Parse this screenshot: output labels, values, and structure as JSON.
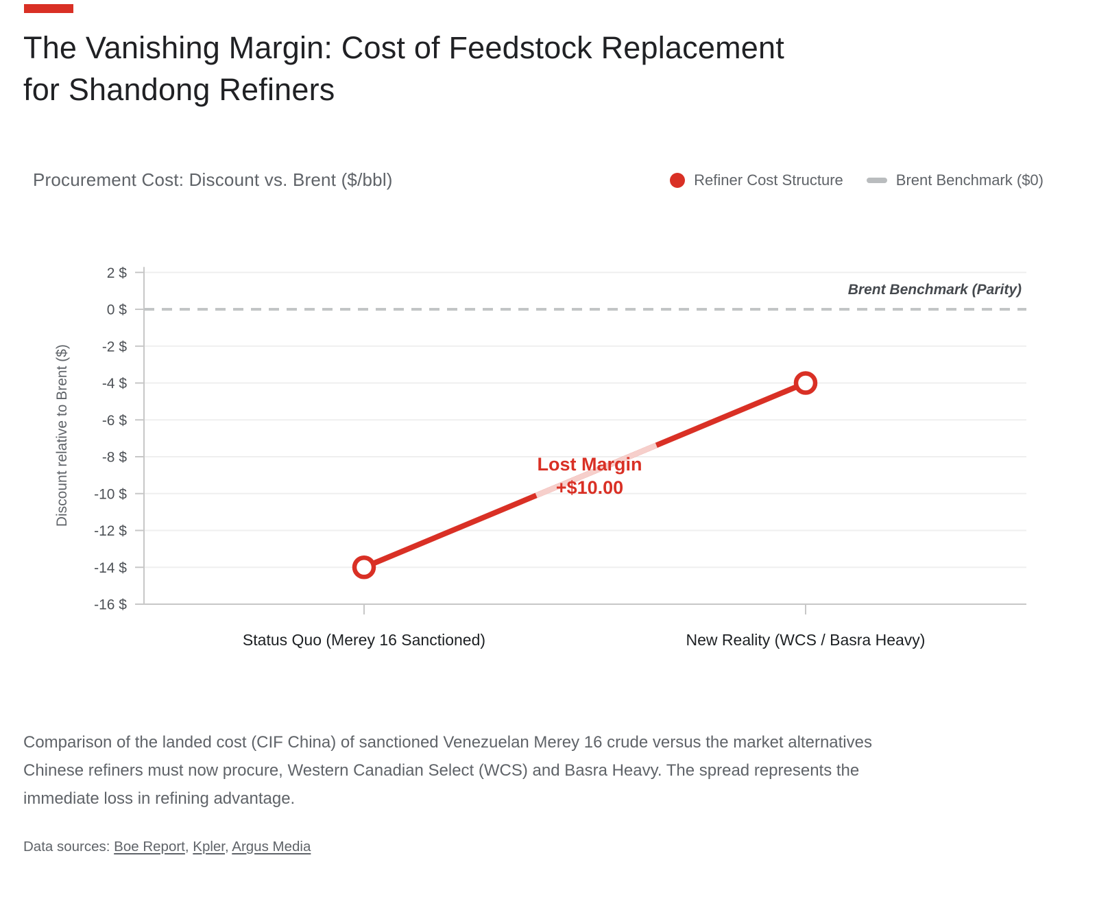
{
  "page": {
    "title_lines": [
      "The Vanishing Margin: Cost of Feedstock Replacement",
      "for Shandong Refiners"
    ],
    "subtitle": "Procurement Cost: Discount vs. Brent ($/bbl)"
  },
  "legend": [
    {
      "label": "Refiner Cost Structure",
      "marker": "dot-icon",
      "color": "#d93025"
    },
    {
      "label": "Brent Benchmark ($0)",
      "marker": "dash-icon",
      "color": "#b9bcbe"
    }
  ],
  "chart_data": {
    "type": "line",
    "categories": [
      "Status Quo (Merey 16 Sanctioned)",
      "New Reality (WCS / Basra Heavy)"
    ],
    "series": [
      {
        "name": "Refiner Cost Structure",
        "values": [
          -14,
          -4
        ]
      }
    ],
    "xlabel": "",
    "ylabel": "Discount relative to Brent ($)",
    "ylim": [
      -16,
      2
    ],
    "yticks": [
      {
        "value": 2,
        "label": "2 $"
      },
      {
        "value": 0,
        "label": "0 $"
      },
      {
        "value": -2,
        "label": "-2 $"
      },
      {
        "value": -4,
        "label": "-4 $"
      },
      {
        "value": -6,
        "label": "-6 $"
      },
      {
        "value": -8,
        "label": "-8 $"
      },
      {
        "value": -10,
        "label": "-10 $"
      },
      {
        "value": -12,
        "label": "-12 $"
      },
      {
        "value": -14,
        "label": "-14 $"
      },
      {
        "value": -16,
        "label": "-16 $"
      }
    ],
    "grid": "horizontal",
    "legend_position": "top-right",
    "benchmark": {
      "value": 0,
      "label": "Brent Benchmark (Parity)"
    },
    "annotation": {
      "lines": [
        "Lost Margin",
        "+$10.00"
      ]
    },
    "colors": {
      "series": "#d93025",
      "faded_segment": "#f6cfcb",
      "annotation": "#d93025",
      "benchmark_line": "#c2c5c6",
      "benchmark_label": "#45494e",
      "grid": "#efefef",
      "axis": "#c7c7c7",
      "ytick_text": "#4d5156",
      "xtick_text": "#1d2023",
      "ylabel_text": "#5f6368"
    }
  },
  "footer": {
    "description_lines": [
      "Comparison of the landed cost (CIF China) of sanctioned Venezuelan Merey 16 crude versus the market alternatives",
      "Chinese refiners must now procure, Western Canadian Select (WCS) and Basra Heavy. The spread represents the",
      "immediate loss in refining advantage."
    ],
    "sources_prefix": "Data sources: ",
    "separator": ", ",
    "sources": [
      {
        "label": "Boe Report"
      },
      {
        "label": "Kpler"
      },
      {
        "label": "Argus Media"
      }
    ]
  }
}
